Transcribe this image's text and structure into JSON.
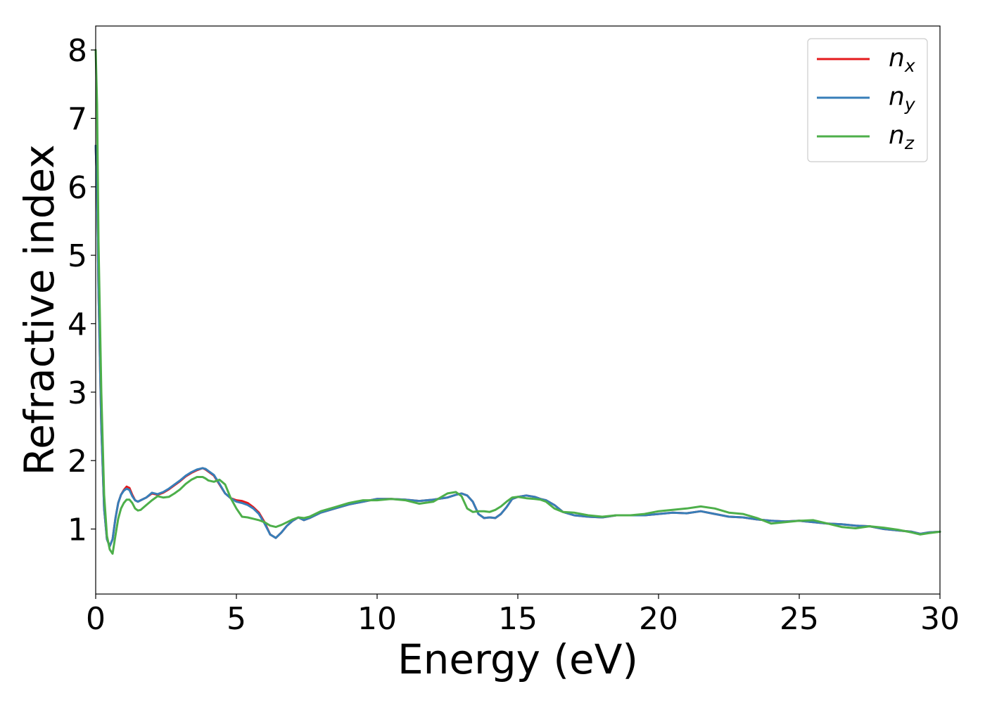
{
  "chart_data": {
    "type": "line",
    "title": "",
    "xlabel": "Energy (eV)",
    "ylabel": "Refractive index",
    "xlim": [
      0,
      30
    ],
    "ylim": [
      0.05,
      8.35
    ],
    "xticks": [
      0,
      5,
      10,
      15,
      20,
      25,
      30
    ],
    "yticks": [
      1,
      2,
      3,
      4,
      5,
      6,
      7,
      8
    ],
    "grid": false,
    "legend_position": "top-right",
    "series": [
      {
        "name": "n",
        "subscript": "x",
        "color": "#e41a1c",
        "x": [
          0,
          0.05,
          0.1,
          0.2,
          0.3,
          0.4,
          0.5,
          0.6,
          0.7,
          0.8,
          0.9,
          1.0,
          1.1,
          1.2,
          1.3,
          1.4,
          1.5,
          1.6,
          1.8,
          2.0,
          2.2,
          2.4,
          2.6,
          2.8,
          3.0,
          3.2,
          3.4,
          3.6,
          3.8,
          3.9,
          4.0,
          4.2,
          4.4,
          4.6,
          4.8,
          5.0,
          5.2,
          5.4,
          5.6,
          5.8,
          6.0,
          6.2,
          6.4,
          6.6,
          6.8,
          7.0,
          7.2,
          7.4,
          7.6,
          7.8,
          8.0,
          8.5,
          9.0,
          9.5,
          10.0,
          10.5,
          11.0,
          11.5,
          12.0,
          12.5,
          12.8,
          13.0,
          13.2,
          13.4,
          13.6,
          13.8,
          14.0,
          14.2,
          14.4,
          14.6,
          14.8,
          15.0,
          15.3,
          15.6,
          15.8,
          16.0,
          16.3,
          16.6,
          17.0,
          17.5,
          18.0,
          18.5,
          19.0,
          19.5,
          20.0,
          20.5,
          21.0,
          21.5,
          22.0,
          22.5,
          23.0,
          23.5,
          24.0,
          24.5,
          25.0,
          25.5,
          26.0,
          26.5,
          27.0,
          27.5,
          28.0,
          28.5,
          29.0,
          29.3,
          29.6,
          30.0
        ],
        "y": [
          6.6,
          6.0,
          4.5,
          2.5,
          1.3,
          0.85,
          0.75,
          0.85,
          1.15,
          1.38,
          1.5,
          1.57,
          1.62,
          1.6,
          1.5,
          1.42,
          1.4,
          1.42,
          1.46,
          1.52,
          1.5,
          1.53,
          1.58,
          1.64,
          1.7,
          1.77,
          1.82,
          1.86,
          1.89,
          1.87,
          1.84,
          1.78,
          1.65,
          1.52,
          1.45,
          1.42,
          1.41,
          1.38,
          1.32,
          1.24,
          1.1,
          0.92,
          0.87,
          0.95,
          1.05,
          1.12,
          1.17,
          1.13,
          1.16,
          1.2,
          1.24,
          1.3,
          1.36,
          1.4,
          1.44,
          1.44,
          1.43,
          1.41,
          1.43,
          1.46,
          1.5,
          1.52,
          1.49,
          1.4,
          1.22,
          1.16,
          1.17,
          1.16,
          1.22,
          1.32,
          1.44,
          1.47,
          1.49,
          1.47,
          1.44,
          1.42,
          1.35,
          1.25,
          1.2,
          1.18,
          1.17,
          1.2,
          1.2,
          1.2,
          1.22,
          1.24,
          1.23,
          1.26,
          1.22,
          1.18,
          1.17,
          1.14,
          1.12,
          1.11,
          1.12,
          1.1,
          1.08,
          1.07,
          1.05,
          1.04,
          1.0,
          0.98,
          0.96,
          0.93,
          0.95,
          0.96
        ]
      },
      {
        "name": "n",
        "subscript": "y",
        "color": "#377eb8",
        "x": [
          0,
          0.05,
          0.1,
          0.2,
          0.3,
          0.4,
          0.5,
          0.6,
          0.7,
          0.8,
          0.9,
          1.0,
          1.1,
          1.2,
          1.3,
          1.4,
          1.5,
          1.6,
          1.8,
          2.0,
          2.2,
          2.4,
          2.6,
          2.8,
          3.0,
          3.2,
          3.4,
          3.6,
          3.8,
          3.9,
          4.0,
          4.2,
          4.4,
          4.6,
          4.8,
          5.0,
          5.2,
          5.4,
          5.6,
          5.8,
          6.0,
          6.2,
          6.4,
          6.6,
          6.8,
          7.0,
          7.2,
          7.4,
          7.6,
          7.8,
          8.0,
          8.5,
          9.0,
          9.5,
          10.0,
          10.5,
          11.0,
          11.5,
          12.0,
          12.5,
          12.8,
          13.0,
          13.2,
          13.4,
          13.6,
          13.8,
          14.0,
          14.2,
          14.4,
          14.6,
          14.8,
          15.0,
          15.3,
          15.6,
          15.8,
          16.0,
          16.3,
          16.6,
          17.0,
          17.5,
          18.0,
          18.5,
          19.0,
          19.5,
          20.0,
          20.5,
          21.0,
          21.5,
          22.0,
          22.5,
          23.0,
          23.5,
          24.0,
          24.5,
          25.0,
          25.5,
          26.0,
          26.5,
          27.0,
          27.5,
          28.0,
          28.5,
          29.0,
          29.3,
          29.6,
          30.0
        ],
        "y": [
          6.6,
          6.0,
          4.5,
          2.5,
          1.3,
          0.85,
          0.75,
          0.85,
          1.15,
          1.38,
          1.5,
          1.56,
          1.59,
          1.57,
          1.48,
          1.42,
          1.4,
          1.42,
          1.46,
          1.53,
          1.51,
          1.54,
          1.59,
          1.65,
          1.71,
          1.78,
          1.83,
          1.87,
          1.89,
          1.88,
          1.85,
          1.79,
          1.66,
          1.52,
          1.45,
          1.4,
          1.38,
          1.35,
          1.3,
          1.22,
          1.08,
          0.92,
          0.87,
          0.95,
          1.05,
          1.12,
          1.17,
          1.13,
          1.16,
          1.2,
          1.24,
          1.3,
          1.36,
          1.4,
          1.44,
          1.44,
          1.43,
          1.41,
          1.43,
          1.46,
          1.5,
          1.52,
          1.49,
          1.4,
          1.22,
          1.16,
          1.17,
          1.16,
          1.22,
          1.32,
          1.44,
          1.47,
          1.49,
          1.47,
          1.44,
          1.42,
          1.35,
          1.25,
          1.2,
          1.18,
          1.17,
          1.2,
          1.2,
          1.2,
          1.22,
          1.24,
          1.23,
          1.26,
          1.22,
          1.18,
          1.17,
          1.14,
          1.12,
          1.11,
          1.12,
          1.1,
          1.08,
          1.07,
          1.05,
          1.04,
          1.0,
          0.98,
          0.96,
          0.93,
          0.95,
          0.96
        ]
      },
      {
        "name": "n",
        "subscript": "z",
        "color": "#4daf4a",
        "x": [
          0,
          0.05,
          0.1,
          0.2,
          0.3,
          0.4,
          0.5,
          0.6,
          0.7,
          0.8,
          0.9,
          1.0,
          1.1,
          1.2,
          1.3,
          1.4,
          1.5,
          1.6,
          1.8,
          2.0,
          2.2,
          2.4,
          2.6,
          2.8,
          3.0,
          3.2,
          3.4,
          3.6,
          3.8,
          3.9,
          4.0,
          4.2,
          4.4,
          4.6,
          4.8,
          5.0,
          5.2,
          5.4,
          5.6,
          5.8,
          6.0,
          6.2,
          6.4,
          6.6,
          6.8,
          7.0,
          7.2,
          7.4,
          7.6,
          7.8,
          8.0,
          8.5,
          9.0,
          9.5,
          10.0,
          10.5,
          11.0,
          11.5,
          12.0,
          12.5,
          12.8,
          13.0,
          13.2,
          13.4,
          13.6,
          13.8,
          14.0,
          14.2,
          14.4,
          14.6,
          14.8,
          15.0,
          15.3,
          15.6,
          15.8,
          16.0,
          16.3,
          16.6,
          17.0,
          17.5,
          18.0,
          18.5,
          19.0,
          19.5,
          20.0,
          20.5,
          21.0,
          21.5,
          22.0,
          22.5,
          23.0,
          23.5,
          24.0,
          24.5,
          25.0,
          25.5,
          26.0,
          26.5,
          27.0,
          27.5,
          28.0,
          28.5,
          29.0,
          29.3,
          29.6,
          30.0
        ],
        "y": [
          8.0,
          7.2,
          5.2,
          3.0,
          1.5,
          0.9,
          0.7,
          0.64,
          0.9,
          1.15,
          1.3,
          1.38,
          1.43,
          1.43,
          1.38,
          1.3,
          1.27,
          1.28,
          1.35,
          1.42,
          1.48,
          1.46,
          1.47,
          1.52,
          1.58,
          1.66,
          1.72,
          1.76,
          1.76,
          1.74,
          1.71,
          1.69,
          1.72,
          1.65,
          1.45,
          1.3,
          1.18,
          1.17,
          1.15,
          1.13,
          1.1,
          1.05,
          1.03,
          1.06,
          1.1,
          1.14,
          1.17,
          1.16,
          1.18,
          1.22,
          1.26,
          1.32,
          1.38,
          1.42,
          1.42,
          1.44,
          1.42,
          1.37,
          1.4,
          1.52,
          1.54,
          1.48,
          1.3,
          1.25,
          1.26,
          1.26,
          1.25,
          1.28,
          1.33,
          1.4,
          1.46,
          1.47,
          1.45,
          1.44,
          1.43,
          1.4,
          1.3,
          1.25,
          1.24,
          1.2,
          1.18,
          1.2,
          1.2,
          1.22,
          1.26,
          1.28,
          1.3,
          1.33,
          1.3,
          1.24,
          1.22,
          1.16,
          1.08,
          1.1,
          1.12,
          1.13,
          1.08,
          1.03,
          1.01,
          1.04,
          1.02,
          0.99,
          0.95,
          0.92,
          0.94,
          0.96
        ]
      }
    ]
  }
}
